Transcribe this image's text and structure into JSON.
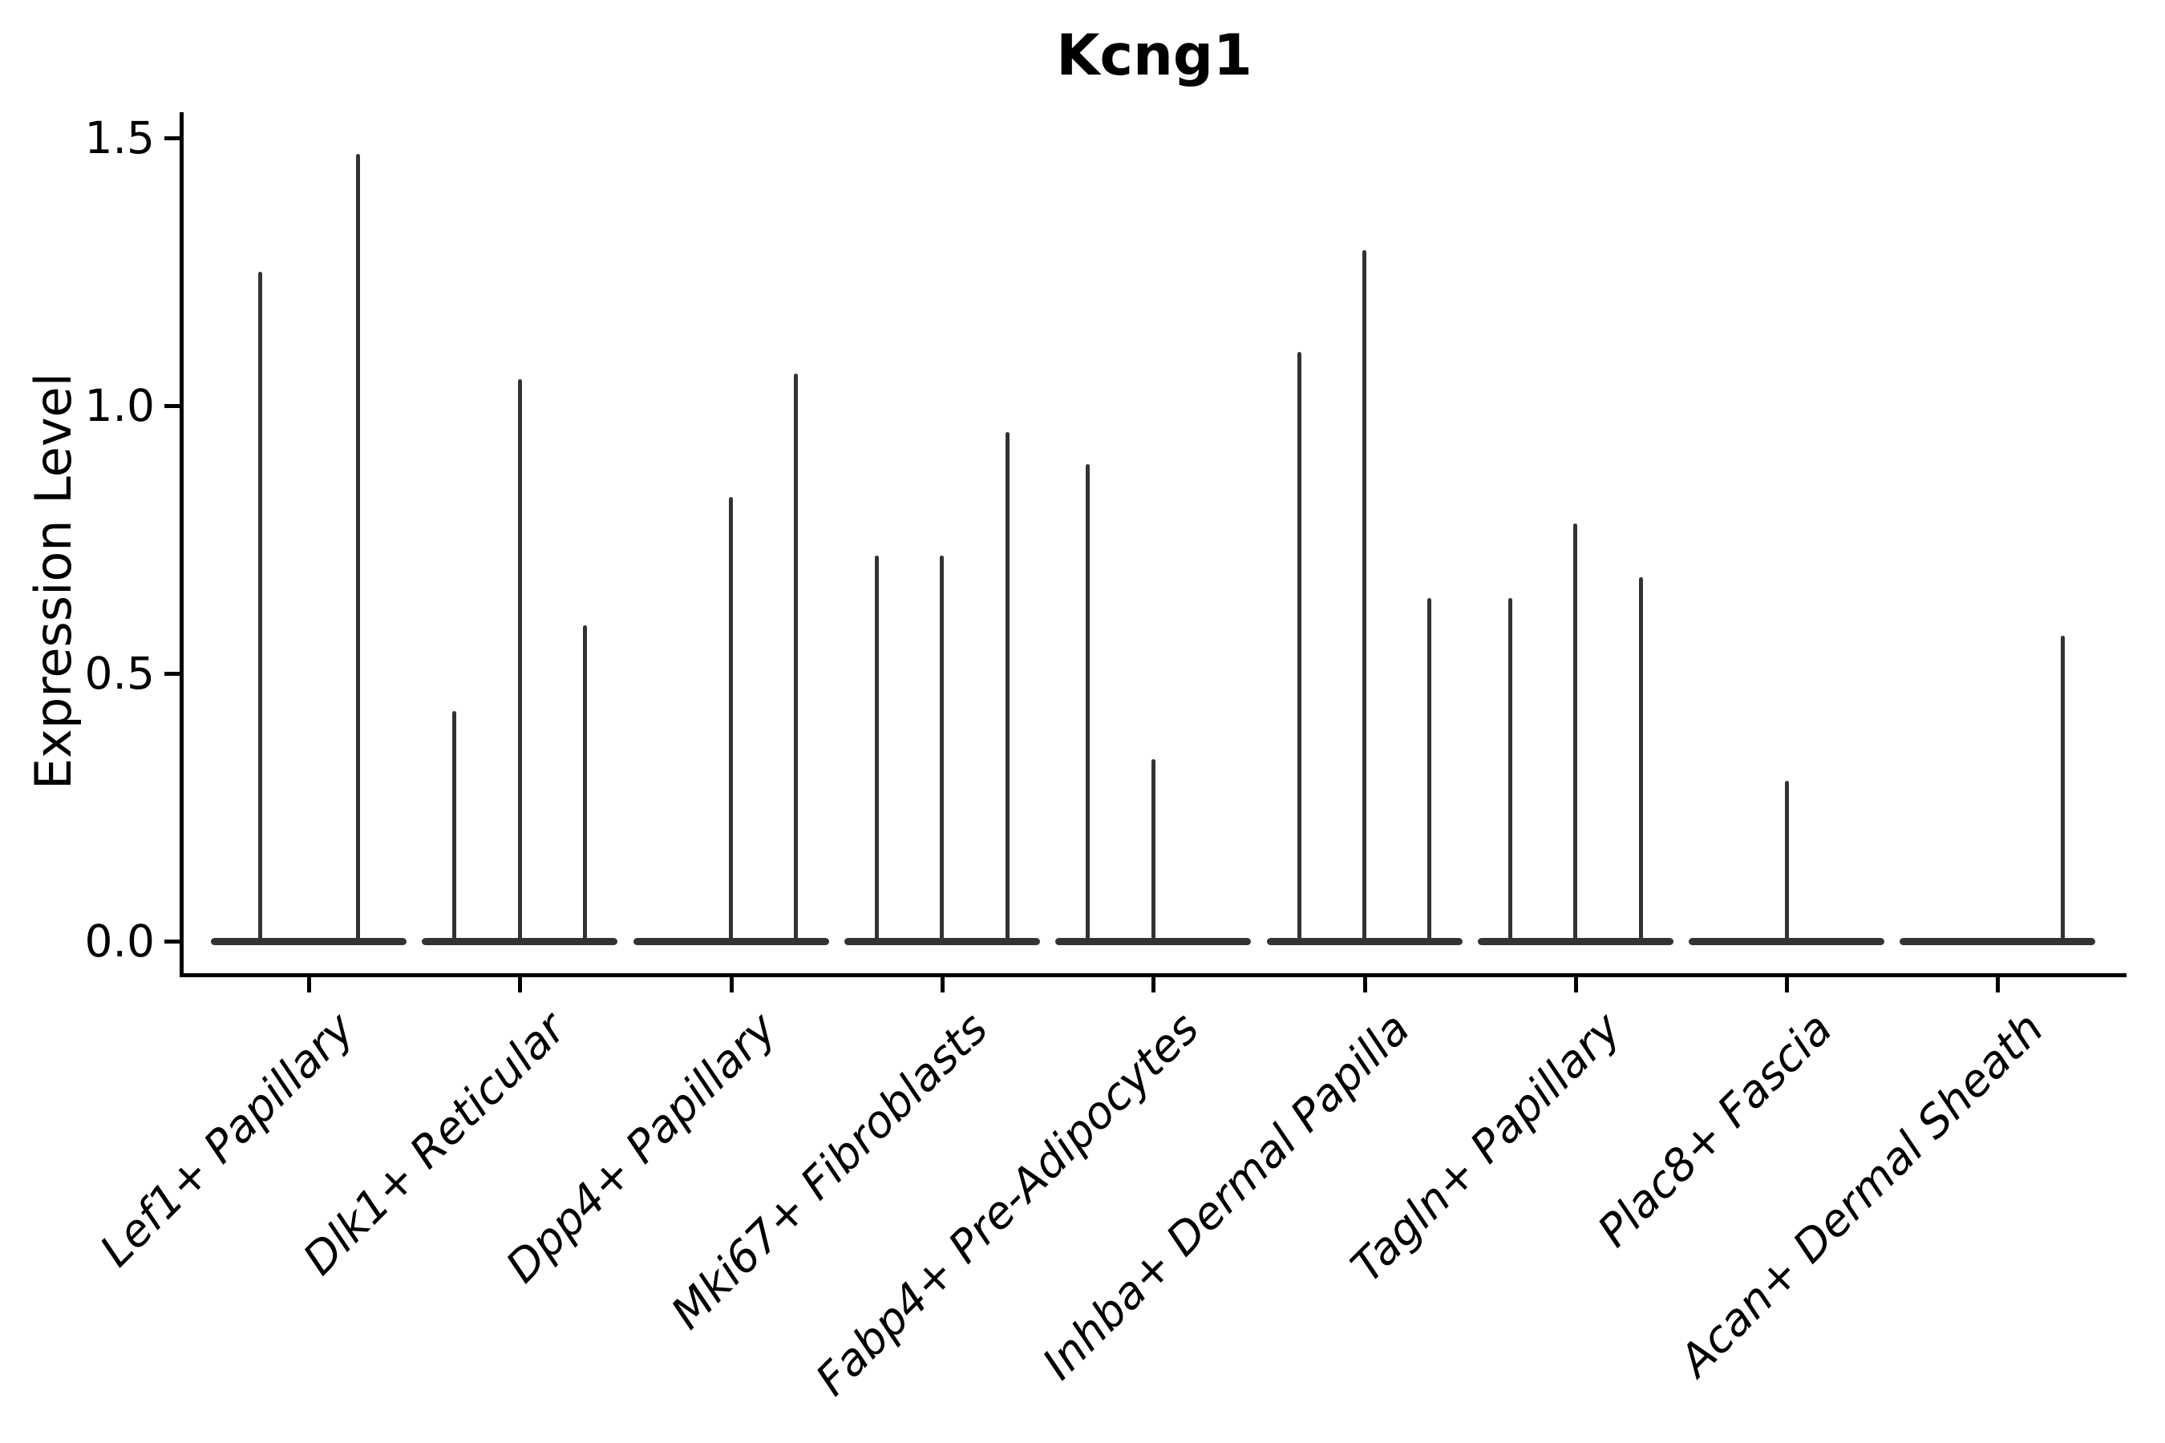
{
  "chart_data": {
    "type": "violin",
    "title": "Kcng1",
    "ylabel": "Expression Level",
    "xlabel": "",
    "yticks": [
      1.5,
      1.0,
      0.5,
      0.0
    ],
    "ylim": [
      0,
      1.55
    ],
    "grid": false,
    "legend": "none",
    "x_label_rotation_deg": 45,
    "violin_color": "#333333",
    "axis_color": "#000000",
    "note": "Each category shows narrow sub-violins collapsed at 0 with thin density spikes; violin_maxima lists the peak expression reached by each sub-violin (0 = flat, no expressing cells).",
    "categories": [
      {
        "label": "Lef1+ Papillary",
        "violin_maxima": [
          1.25,
          1.47
        ]
      },
      {
        "label": "Dlk1+ Reticular",
        "violin_maxima": [
          0.43,
          1.05,
          0.59
        ]
      },
      {
        "label": "Dpp4+ Papillary",
        "violin_maxima": [
          0,
          0.83,
          1.06
        ]
      },
      {
        "label": "Mki67+ Fibroblasts",
        "violin_maxima": [
          0.72,
          0.72,
          0.95
        ]
      },
      {
        "label": "Fabp4+ Pre-Adipocytes",
        "violin_maxima": [
          0.89,
          0.34,
          0
        ]
      },
      {
        "label": "Inhba+ Dermal Papilla",
        "violin_maxima": [
          1.1,
          1.29,
          0.64
        ]
      },
      {
        "label": "Tagln+ Papillary",
        "violin_maxima": [
          0.64,
          0.78,
          0.68
        ]
      },
      {
        "label": "Plac8+ Fascia",
        "violin_maxima": [
          0,
          0.3,
          0
        ]
      },
      {
        "label": "Acan+ Dermal Sheath",
        "violin_maxima": [
          0,
          0,
          0.57
        ]
      }
    ]
  }
}
